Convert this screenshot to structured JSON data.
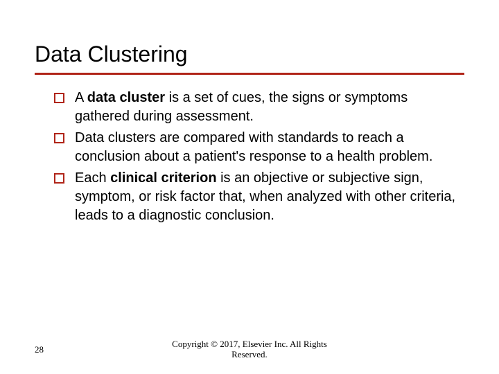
{
  "title": "Data Clustering",
  "underline_color": "#b02418",
  "bullet_border_color": "#b02418",
  "background_color": "#ffffff",
  "text_color": "#000000",
  "title_fontsize": 32,
  "body_fontsize": 20,
  "bullets": [
    {
      "prefix": "A ",
      "bold": "data cluster",
      "suffix": " is a set of cues, the signs or symptoms gathered during assessment."
    },
    {
      "prefix": "",
      "bold": "",
      "suffix": "Data clusters are compared with standards to reach a conclusion about a patient's response to a health problem."
    },
    {
      "prefix": "Each ",
      "bold": "clinical criterion",
      "suffix": " is an objective or subjective sign, symptom, or risk factor that, when analyzed with other criteria, leads to a diagnostic conclusion."
    }
  ],
  "page_number": "28",
  "copyright_line1": "Copyright © 2017, Elsevier Inc. All Rights",
  "copyright_line2": "Reserved."
}
